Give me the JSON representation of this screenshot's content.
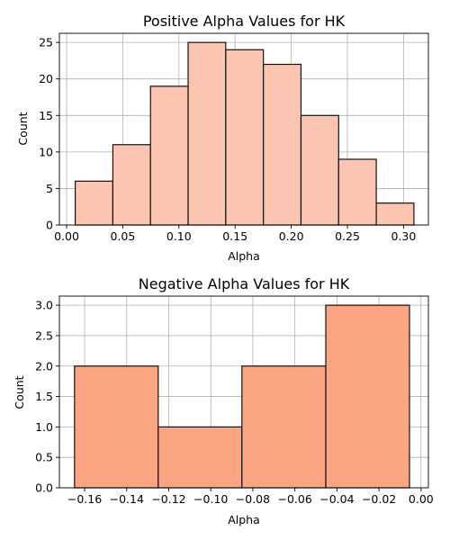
{
  "chart_data": [
    {
      "type": "bar",
      "title": "Positive Alpha Values for HK",
      "xlabel": "Alpha",
      "ylabel": "Count",
      "xlim": [
        -0.0064,
        0.3221
      ],
      "ylim": [
        0,
        26.25
      ],
      "xticks": [
        0.0,
        0.05,
        0.1,
        0.15,
        0.2,
        0.25,
        0.3
      ],
      "xtick_labels": [
        "0.00",
        "0.05",
        "0.10",
        "0.15",
        "0.20",
        "0.25",
        "0.30"
      ],
      "yticks": [
        0,
        5,
        10,
        15,
        20,
        25
      ],
      "ytick_labels": [
        "0",
        "5",
        "10",
        "15",
        "20",
        "25"
      ],
      "grid": true,
      "bar_color": "#fcc5b0",
      "edge_color": "#111111",
      "bins": [
        {
          "x0": 0.0077,
          "x1": 0.0412,
          "value": 6
        },
        {
          "x0": 0.0412,
          "x1": 0.0747,
          "value": 11
        },
        {
          "x0": 0.0747,
          "x1": 0.1082,
          "value": 19
        },
        {
          "x0": 0.1082,
          "x1": 0.1417,
          "value": 25
        },
        {
          "x0": 0.1417,
          "x1": 0.1752,
          "value": 24
        },
        {
          "x0": 0.1752,
          "x1": 0.2087,
          "value": 22
        },
        {
          "x0": 0.2087,
          "x1": 0.2422,
          "value": 15
        },
        {
          "x0": 0.2422,
          "x1": 0.2757,
          "value": 9
        },
        {
          "x0": 0.2757,
          "x1": 0.3092,
          "value": 3
        }
      ]
    },
    {
      "type": "bar",
      "title": "Negative Alpha Values for HK",
      "xlabel": "Alpha",
      "ylabel": "Count",
      "xlim": [
        -0.172,
        0.0035
      ],
      "ylim": [
        0,
        3.15
      ],
      "xticks": [
        -0.16,
        -0.14,
        -0.12,
        -0.1,
        -0.08,
        -0.06,
        -0.04,
        -0.02,
        0.0
      ],
      "xtick_labels": [
        "−0.16",
        "−0.14",
        "−0.12",
        "−0.10",
        "−0.08",
        "−0.06",
        "−0.04",
        "−0.02",
        "0.00"
      ],
      "yticks": [
        0.0,
        0.5,
        1.0,
        1.5,
        2.0,
        2.5,
        3.0
      ],
      "ytick_labels": [
        "0.0",
        "0.5",
        "1.0",
        "1.5",
        "2.0",
        "2.5",
        "3.0"
      ],
      "grid": true,
      "bar_color": "#fca582",
      "edge_color": "#111111",
      "bins": [
        {
          "x0": -0.1648,
          "x1": -0.125,
          "value": 2
        },
        {
          "x0": -0.125,
          "x1": -0.0852,
          "value": 1
        },
        {
          "x0": -0.0852,
          "x1": -0.0453,
          "value": 2
        },
        {
          "x0": -0.0453,
          "x1": -0.0055,
          "value": 3
        }
      ]
    }
  ]
}
